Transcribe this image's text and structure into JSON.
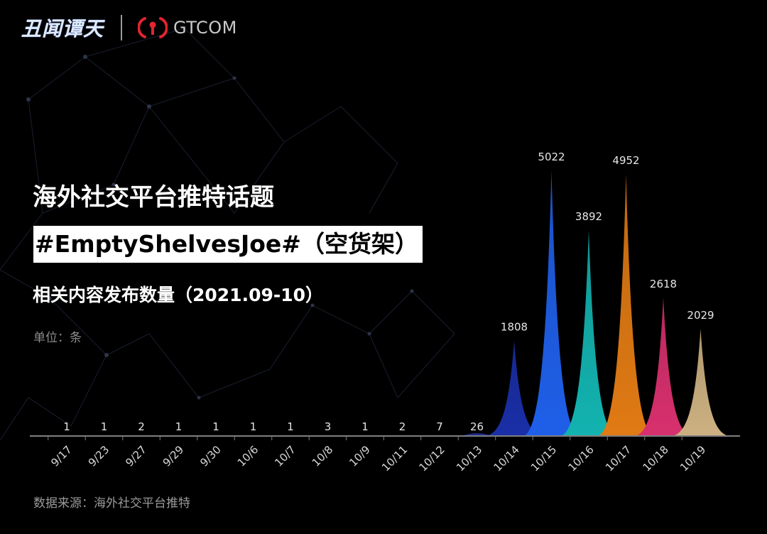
{
  "header": {
    "logo_cn": "丑闻谭天",
    "logo_en": "GTCOM"
  },
  "titles": {
    "line1": "海外社交平台推特话题",
    "line2": "#EmptyShelvesJoe#（空货架）",
    "line3": "相关内容发布数量（2021.09-10）",
    "unit": "单位：条"
  },
  "source": "数据来源：海外社交平台推特",
  "colors": {
    "background": "#000000",
    "axis": "#7f7f7f",
    "peaks": [
      "#1a2fa8",
      "#1f5fe8",
      "#13b3b0",
      "#e07a14",
      "#d8306e",
      "#cdb182"
    ]
  },
  "chart_data": {
    "type": "area",
    "categories": [
      "9/17",
      "9/23",
      "9/27",
      "9/29",
      "9/30",
      "10/6",
      "10/7",
      "10/8",
      "10/9",
      "10/11",
      "10/12",
      "10/13",
      "10/14",
      "10/15",
      "10/16",
      "10/17",
      "10/18",
      "10/19"
    ],
    "values": [
      1,
      1,
      2,
      1,
      1,
      1,
      1,
      3,
      1,
      2,
      7,
      26,
      1808,
      5022,
      3892,
      4952,
      2618,
      2029
    ],
    "title": "",
    "xlabel": "",
    "ylabel": "",
    "ylim": [
      0,
      5200
    ],
    "grid": false,
    "legend": "none"
  }
}
